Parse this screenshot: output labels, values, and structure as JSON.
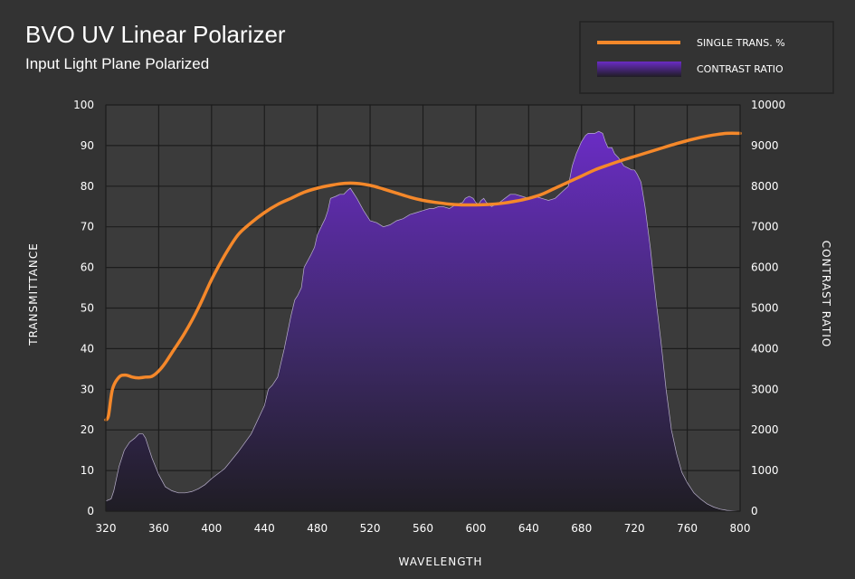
{
  "chart_data": {
    "type": "area",
    "title": "BVO UV Linear Polarizer",
    "subtitle": "Input Light Plane Polarized",
    "xlabel": "WAVELENGTH",
    "ylabel": "TRANSMITTANCE",
    "y2label": "CONTRAST RATIO",
    "xlim": [
      320,
      800
    ],
    "ylim": [
      0,
      100
    ],
    "y2lim": [
      0,
      10000
    ],
    "grid": true,
    "legend_position": "top-right",
    "x_ticks": [
      "320",
      "360",
      "400",
      "440",
      "480",
      "520",
      "560",
      "600",
      "640",
      "680",
      "720",
      "760",
      "800"
    ],
    "y_ticks": [
      "0",
      "10",
      "20",
      "30",
      "40",
      "50",
      "60",
      "70",
      "80",
      "90",
      "100"
    ],
    "y2_ticks": [
      "0",
      "1000",
      "2000",
      "3000",
      "4000",
      "5000",
      "6000",
      "7000",
      "8000",
      "9000",
      "10000"
    ],
    "colors": {
      "background": "#333333",
      "plot_background": "#3b3b3b",
      "grid": "#1c1c1c",
      "trans_line": "#f5882a",
      "area_top": "#6a2cc4",
      "area_bottom": "#1f1d24"
    },
    "series": [
      {
        "name": "SINGLE TRANS. %",
        "type": "line",
        "axis": "left",
        "x": [
          320,
          322,
          325,
          330,
          335,
          340,
          345,
          350,
          355,
          360,
          365,
          370,
          380,
          390,
          400,
          410,
          420,
          430,
          440,
          450,
          460,
          470,
          480,
          490,
          500,
          510,
          520,
          530,
          540,
          550,
          560,
          570,
          580,
          590,
          600,
          610,
          620,
          630,
          640,
          650,
          660,
          670,
          680,
          690,
          700,
          710,
          720,
          730,
          740,
          750,
          760,
          770,
          780,
          790,
          800
        ],
        "values": [
          22.5,
          23.5,
          30,
          33,
          33.5,
          33,
          32.8,
          33,
          33.2,
          34.5,
          36.5,
          39,
          44,
          50,
          57,
          63,
          68,
          71,
          73.5,
          75.5,
          77,
          78.5,
          79.5,
          80.2,
          80.7,
          80.7,
          80.2,
          79.3,
          78.3,
          77.3,
          76.5,
          76,
          75.6,
          75.4,
          75.4,
          75.5,
          75.8,
          76.3,
          77,
          78,
          79.5,
          81,
          82.5,
          84,
          85.2,
          86.3,
          87.3,
          88.3,
          89.3,
          90.3,
          91.2,
          92,
          92.6,
          93,
          93
        ]
      },
      {
        "name": "CONTRAST RATIO",
        "type": "area",
        "axis": "right",
        "x": [
          320,
          324,
          326,
          328,
          330,
          334,
          338,
          342,
          345,
          348,
          350,
          355,
          360,
          365,
          370,
          375,
          380,
          385,
          390,
          395,
          400,
          410,
          420,
          430,
          440,
          443,
          446,
          450,
          455,
          460,
          463,
          465,
          468,
          470,
          475,
          478,
          480,
          483,
          486,
          488,
          490,
          494,
          497,
          500,
          503,
          505,
          507,
          510,
          515,
          520,
          525,
          530,
          535,
          540,
          545,
          550,
          555,
          560,
          565,
          568,
          572,
          575,
          580,
          585,
          590,
          592,
          595,
          598,
          600,
          602,
          604,
          606,
          608,
          612,
          615,
          618,
          622,
          626,
          630,
          635,
          640,
          645,
          650,
          655,
          660,
          665,
          670,
          673,
          676,
          680,
          683,
          685,
          688,
          690,
          693,
          696,
          698,
          700,
          703,
          705,
          708,
          710,
          712,
          715,
          718,
          720,
          722,
          725,
          728,
          732,
          736,
          740,
          744,
          748,
          752,
          756,
          760,
          765,
          770,
          775,
          780,
          785,
          790,
          795,
          800
        ],
        "values": [
          250,
          300,
          500,
          800,
          1100,
          1500,
          1700,
          1800,
          1900,
          1900,
          1800,
          1300,
          900,
          600,
          500,
          450,
          450,
          480,
          550,
          650,
          800,
          1050,
          1450,
          1900,
          2600,
          3000,
          3100,
          3300,
          4000,
          4800,
          5200,
          5300,
          5500,
          6000,
          6300,
          6500,
          6800,
          7000,
          7200,
          7400,
          7700,
          7750,
          7800,
          7800,
          7900,
          7950,
          7850,
          7700,
          7400,
          7150,
          7100,
          7000,
          7050,
          7150,
          7200,
          7300,
          7350,
          7400,
          7450,
          7450,
          7500,
          7500,
          7450,
          7550,
          7600,
          7700,
          7750,
          7700,
          7600,
          7550,
          7650,
          7700,
          7600,
          7500,
          7550,
          7600,
          7700,
          7800,
          7800,
          7750,
          7700,
          7750,
          7700,
          7650,
          7700,
          7850,
          8000,
          8500,
          8800,
          9100,
          9250,
          9300,
          9300,
          9300,
          9350,
          9300,
          9100,
          8950,
          8950,
          8800,
          8700,
          8600,
          8500,
          8450,
          8400,
          8400,
          8300,
          8100,
          7500,
          6500,
          5300,
          4200,
          3000,
          2000,
          1400,
          950,
          700,
          450,
          300,
          180,
          100,
          50,
          20,
          10,
          0
        ]
      }
    ]
  }
}
